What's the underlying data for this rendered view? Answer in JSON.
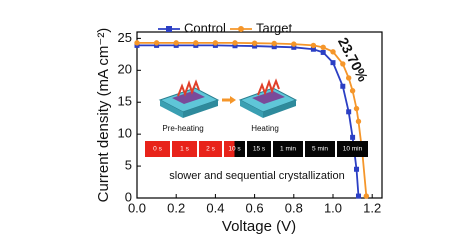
{
  "chart_data": {
    "type": "line",
    "xlabel": "Voltage (V)",
    "ylabel": "Current density (mA cm⁻²)",
    "x": [
      0,
      0.1,
      0.2,
      0.3,
      0.4,
      0.5,
      0.6,
      0.7,
      0.8,
      0.9,
      0.95,
      1.0,
      1.05,
      1.08,
      1.1,
      1.12,
      1.13,
      1.15,
      1.17
    ],
    "series": [
      {
        "name": "Control",
        "color": "#2b3fc4",
        "marker": "square",
        "values": [
          23.9,
          23.9,
          23.9,
          23.9,
          23.9,
          23.85,
          23.8,
          23.7,
          23.6,
          23.3,
          22.8,
          21.2,
          17.5,
          13.5,
          9.5,
          4.5,
          0.3,
          null,
          null
        ]
      },
      {
        "name": "Target",
        "color": "#f5962a",
        "marker": "circle",
        "values": [
          24.3,
          24.3,
          24.3,
          24.3,
          24.3,
          24.3,
          24.25,
          24.2,
          24.1,
          23.9,
          23.6,
          22.9,
          21.0,
          18.8,
          16.8,
          14.0,
          12.0,
          7.0,
          0.3
        ]
      }
    ],
    "xlim": [
      0,
      1.25
    ],
    "xticks": [
      {
        "value": 0,
        "label": "0.0"
      },
      0.2,
      0.4,
      0.6,
      0.8,
      {
        "value": 1,
        "label": "1.0"
      },
      1.2
    ],
    "ylim": [
      0,
      26
    ],
    "yticks": [
      0,
      5,
      10,
      15,
      20,
      25
    ],
    "annotation": "23.70%",
    "inset": {
      "labels": [
        "Pre-heating",
        "Heating"
      ],
      "frames": [
        "0 s",
        "1 s",
        "2 s",
        "10 s",
        "15 s",
        "1 min",
        "5 min",
        "10 min"
      ],
      "caption": "slower and sequential crystallization"
    }
  }
}
